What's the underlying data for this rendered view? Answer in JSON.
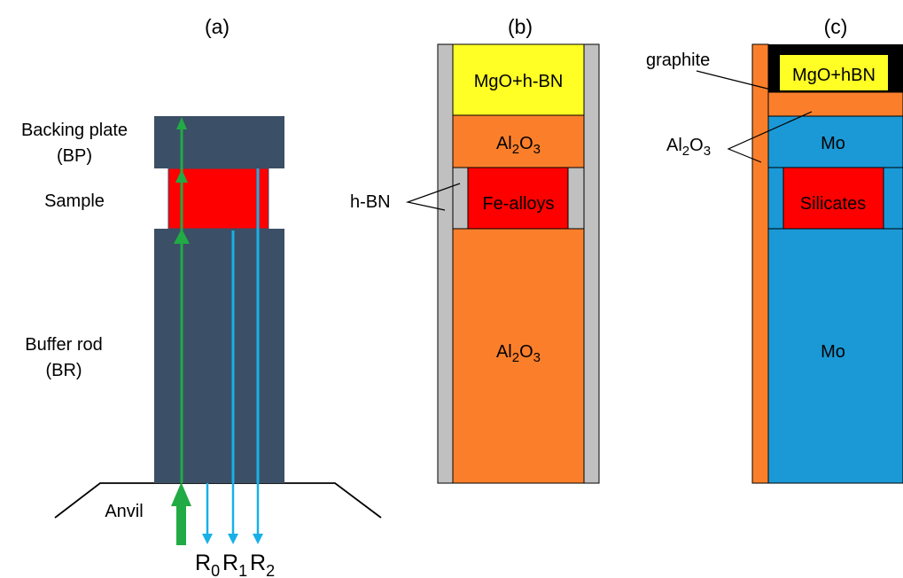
{
  "panels": {
    "a": {
      "letter": "(a)",
      "backing_plate": [
        "Backing plate",
        "(BP)"
      ],
      "sample": "Sample",
      "buffer_rod": [
        "Buffer rod",
        "(BR)"
      ],
      "anvil": "Anvil",
      "reflections": [
        {
          "main": "R",
          "sub": "0"
        },
        {
          "main": "R",
          "sub": "1"
        },
        {
          "main": "R",
          "sub": "2"
        }
      ]
    },
    "b": {
      "letter": "(b)",
      "top": "MgO+h-BN",
      "upper_main": "Al",
      "upper_s1": "2",
      "upper_mid": "O",
      "upper_s2": "3",
      "sample": "Fe-alloys",
      "lower_main": "Al",
      "lower_s1": "2",
      "lower_mid": "O",
      "lower_s2": "3",
      "sleeve_label": "h-BN"
    },
    "c": {
      "letter": "(c)",
      "top": "MgO+hBN",
      "graphite_label": "graphite",
      "al2o3_main": "Al",
      "al2o3_s1": "2",
      "al2o3_mid": "O",
      "al2o3_s2": "3",
      "upper": "Mo",
      "sample": "Silicates",
      "lower": "Mo"
    }
  },
  "colors": {
    "dark_slate": "#3b4f66",
    "sample_red": "#ff0000",
    "green_arrow": "#22aa44",
    "blue_arrow": "#19b0e8",
    "orange": "#fb7f2b",
    "gray": "#c0c0c0",
    "yellow": "#ffff26",
    "mo_blue": "#1a99d6",
    "black": "#000000"
  },
  "icons": [
    "arrow-up-icon",
    "arrow-down-icon"
  ]
}
